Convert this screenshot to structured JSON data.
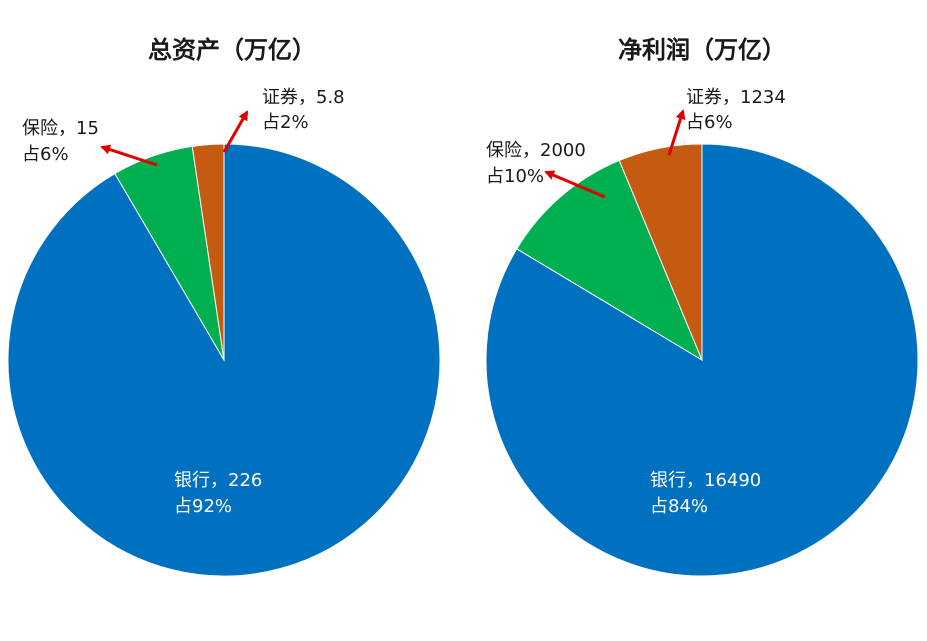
{
  "chart_data": [
    {
      "type": "pie",
      "title": "总资产（万亿）",
      "slices": [
        {
          "name": "银行",
          "value": 226,
          "label_line1": "银行，226",
          "label_line2": "占92%",
          "color": "#0070C0"
        },
        {
          "name": "保险",
          "value": 15,
          "label_line1": "保险，15",
          "label_line2": "占6%",
          "color": "#00B050"
        },
        {
          "name": "证券",
          "value": 5.8,
          "label_line1": "证券，5.8",
          "label_line2": "占2%",
          "color": "#C55A11"
        }
      ]
    },
    {
      "type": "pie",
      "title": "净利润（万亿）",
      "slices": [
        {
          "name": "银行",
          "value": 16490,
          "label_line1": "银行，16490",
          "label_line2": "占84%",
          "color": "#0070C0"
        },
        {
          "name": "保险",
          "value": 2000,
          "label_line1": "保险，2000",
          "label_line2": "占10%",
          "color": "#00B050"
        },
        {
          "name": "证券",
          "value": 1234,
          "label_line1": "证券，1234",
          "label_line2": "占6%",
          "color": "#C55A11"
        }
      ]
    }
  ],
  "arrow_color": "#E00000",
  "inner_label_color": "#ffffff",
  "outer_label_color": "#1a1a1a"
}
